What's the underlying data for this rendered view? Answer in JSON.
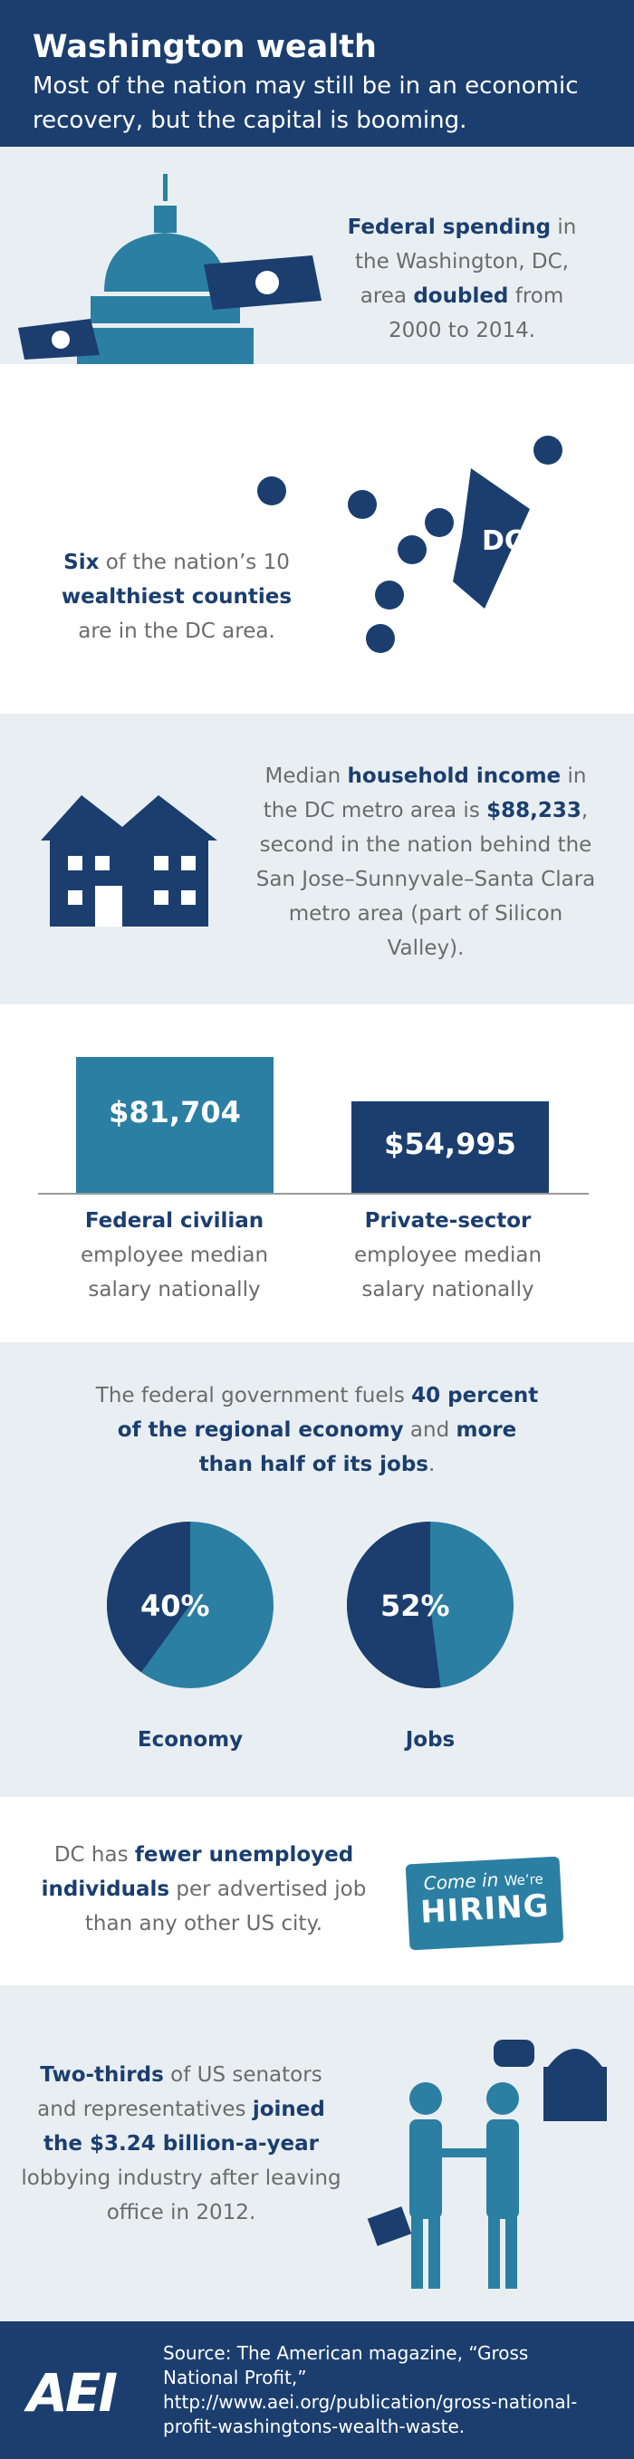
{
  "header": {
    "title": "Washington wealth",
    "subtitle": "Most of the nation may still be in an economic recovery, but the capital is booming."
  },
  "s1": {
    "b1": "Federal spending",
    "t1": " in the Washington, DC, area ",
    "b2": "doubled",
    "t2": " from 2000 to 2014."
  },
  "s2": {
    "b1": "Six",
    "t1": " of the nation’s 10 ",
    "b2": "wealthiest counties",
    "t2": " are in the DC area.",
    "map_label": "DC"
  },
  "s3": {
    "t1": "Median ",
    "b1": "household income",
    "t2": " in the DC metro area is ",
    "b2": "$88,233",
    "t3": ", second in the nation behind the San Jose–Sunnyvale–Santa Clara metro area (part of Silicon Valley)."
  },
  "chart_data": [
    {
      "type": "bar",
      "categories": [
        "Federal civilian employee median salary nationally",
        "Private-sector employee median salary nationally"
      ],
      "values": [
        81704,
        54995
      ],
      "data_labels": [
        "$81,704",
        "$54,995"
      ],
      "colors": [
        "#2b7fa3",
        "#1b3e6f"
      ]
    },
    {
      "type": "pie",
      "title": "Economy",
      "values": [
        40,
        60
      ],
      "data_label": "40%"
    },
    {
      "type": "pie",
      "title": "Jobs",
      "values": [
        52,
        48
      ],
      "data_label": "52%"
    }
  ],
  "s4": {
    "c1_bold": "Federal civilian",
    "c1_rest": "employee median salary nationally",
    "c2_bold": "Private-sector",
    "c2_rest": "employee median salary nationally"
  },
  "s5": {
    "t1": "The federal government fuels ",
    "b1": "40 percent of the regional economy",
    "t2": " and ",
    "b2": "more than half of its jobs",
    "t3": "."
  },
  "s6": {
    "t1": "DC has ",
    "b1": "fewer unemployed individuals",
    "t2": " per advertised job than any other US city.",
    "sign1": "Come in",
    "sign2": "We’re",
    "sign3": "HIRING"
  },
  "s7": {
    "b1": "Two-thirds",
    "t1": " of US senators and representatives ",
    "b2": "joined the $3.24 billion-a-year",
    "t2": " lobbying industry after leaving office in 2012."
  },
  "footer": {
    "logo": "AEI",
    "source": "Source: The American magazine, “Gross National Profit,”  http://www.aei.org/publication/gross-national-profit-washingtons-wealth-waste."
  },
  "colors": {
    "navy": "#1b3e6f",
    "teal": "#2b7fa3",
    "light": "#e9eef2"
  }
}
